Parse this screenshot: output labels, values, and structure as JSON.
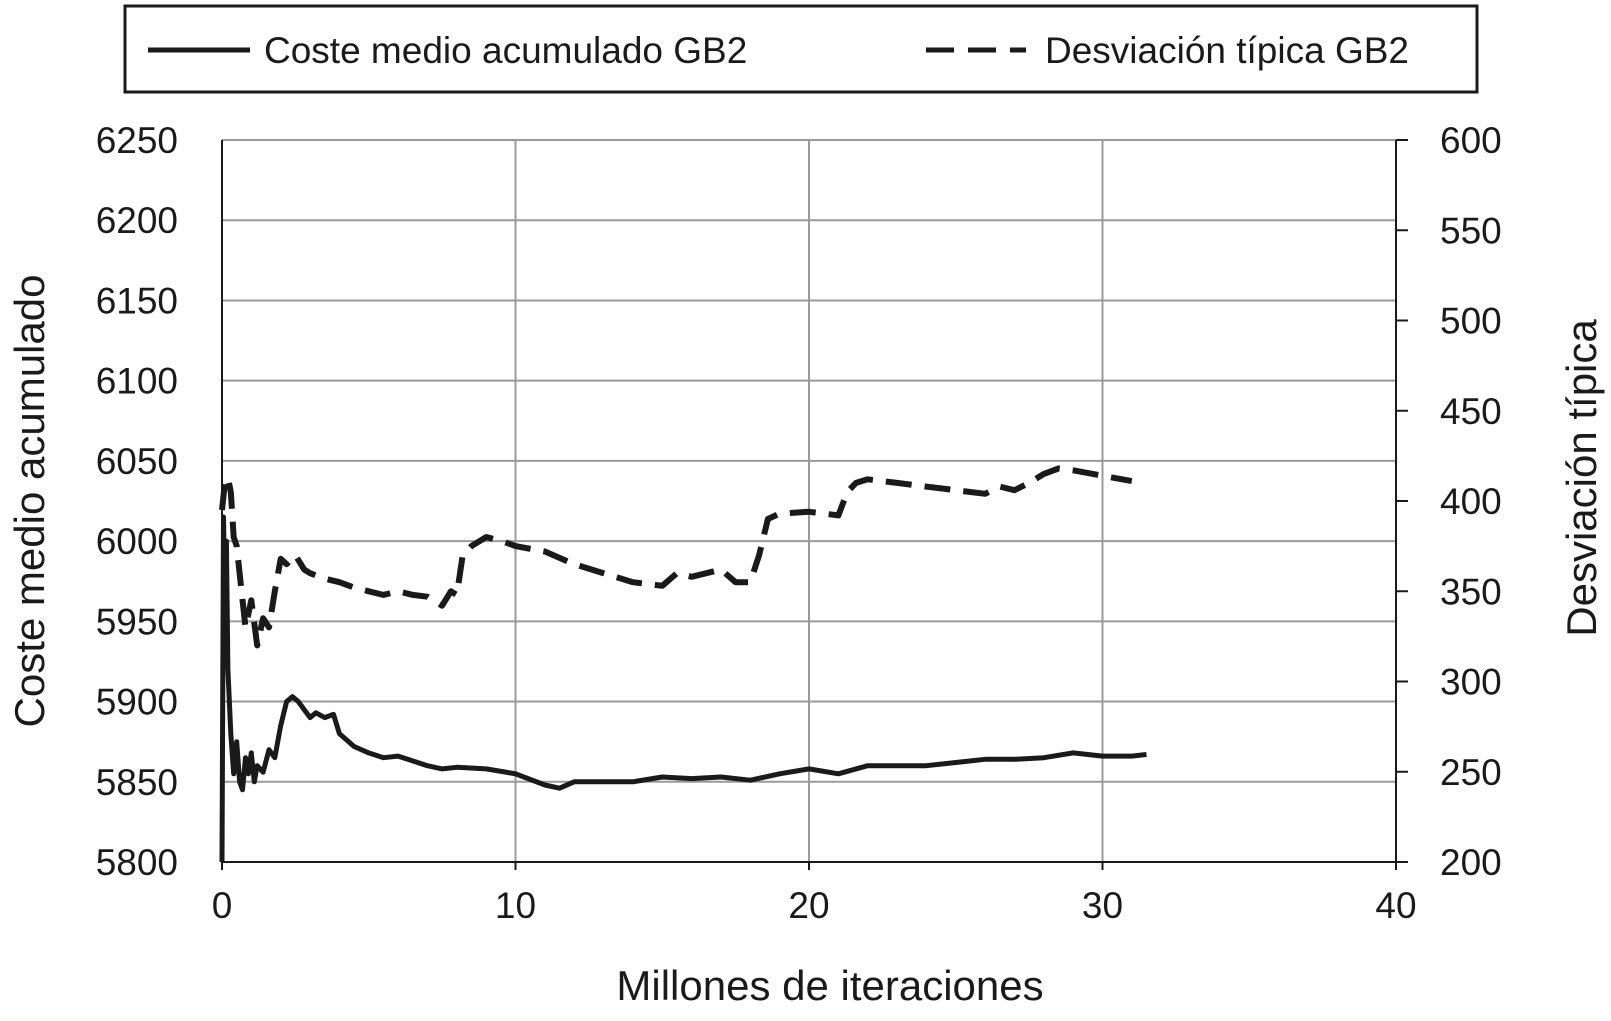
{
  "chart_data": {
    "type": "line",
    "title": "",
    "xlabel": "Millones de iteraciones",
    "ylabel_left": "Coste medio acumulado",
    "ylabel_right": "Desviación típica",
    "xlim": [
      0,
      40
    ],
    "ylim_left": [
      5800,
      6250
    ],
    "ylim_right": [
      200,
      600
    ],
    "x_ticks": [
      0,
      10,
      20,
      30,
      40
    ],
    "y_ticks_left": [
      5800,
      5850,
      5900,
      5950,
      6000,
      6050,
      6100,
      6150,
      6200,
      6250
    ],
    "y_ticks_right": [
      200,
      250,
      300,
      350,
      400,
      450,
      500,
      550,
      600
    ],
    "grid": true,
    "legend_position": "top",
    "series": [
      {
        "name": "Coste medio acumulado GB2",
        "axis": "left",
        "style": "solid",
        "color": "#1a1a1a",
        "x": [
          0,
          0.05,
          0.1,
          0.15,
          0.2,
          0.3,
          0.4,
          0.5,
          0.6,
          0.7,
          0.8,
          0.9,
          1.0,
          1.1,
          1.2,
          1.4,
          1.6,
          1.8,
          2.0,
          2.2,
          2.4,
          2.6,
          2.8,
          3.0,
          3.2,
          3.5,
          3.8,
          4.0,
          4.5,
          5.0,
          5.5,
          6.0,
          7.0,
          7.5,
          8.0,
          9.0,
          10.0,
          11.0,
          11.5,
          12.0,
          13.0,
          14.0,
          15.0,
          16.0,
          17.0,
          18.0,
          19.0,
          20.0,
          21.0,
          22.0,
          23.0,
          24.0,
          25.0,
          26.0,
          27.0,
          28.0,
          29.0,
          30.0,
          31.0,
          31.5
        ],
        "values": [
          5800,
          6015,
          5960,
          6000,
          5920,
          5880,
          5855,
          5875,
          5850,
          5845,
          5865,
          5855,
          5868,
          5850,
          5860,
          5856,
          5870,
          5865,
          5885,
          5900,
          5903,
          5900,
          5895,
          5890,
          5893,
          5890,
          5892,
          5880,
          5872,
          5868,
          5865,
          5866,
          5860,
          5858,
          5859,
          5858,
          5855,
          5848,
          5846,
          5850,
          5850,
          5850,
          5853,
          5852,
          5853,
          5851,
          5855,
          5858,
          5855,
          5860,
          5860,
          5860,
          5862,
          5864,
          5864,
          5865,
          5868,
          5866,
          5866,
          5867
        ]
      },
      {
        "name": "Desviación típica GB2",
        "axis": "right",
        "style": "dashed",
        "color": "#1a1a1a",
        "x": [
          0,
          0.1,
          0.2,
          0.3,
          0.4,
          0.5,
          0.6,
          0.8,
          1.0,
          1.2,
          1.4,
          1.6,
          1.8,
          2.0,
          2.2,
          2.5,
          2.8,
          3.0,
          3.5,
          4.0,
          4.5,
          5.0,
          5.5,
          6.0,
          6.5,
          7.0,
          7.5,
          7.8,
          8.0,
          8.2,
          8.5,
          9.0,
          9.5,
          10.0,
          11.0,
          12.0,
          13.0,
          14.0,
          15.0,
          15.5,
          16.0,
          17.0,
          17.5,
          18.0,
          18.3,
          18.6,
          19.0,
          20.0,
          21.0,
          21.3,
          21.6,
          22.0,
          23.0,
          24.0,
          25.0,
          26.0,
          26.5,
          27.0,
          27.5,
          28.0,
          28.5,
          29.0,
          30.0,
          31.0
        ],
        "values": [
          395,
          410,
          413,
          405,
          380,
          375,
          360,
          330,
          345,
          320,
          335,
          330,
          350,
          368,
          365,
          370,
          362,
          360,
          357,
          355,
          352,
          350,
          348,
          350,
          348,
          347,
          342,
          350,
          348,
          370,
          375,
          380,
          378,
          375,
          372,
          365,
          360,
          355,
          353,
          360,
          358,
          362,
          355,
          355,
          370,
          390,
          393,
          394,
          392,
          405,
          410,
          412,
          410,
          408,
          406,
          404,
          408,
          406,
          410,
          415,
          418,
          417,
          414,
          411
        ]
      }
    ]
  }
}
